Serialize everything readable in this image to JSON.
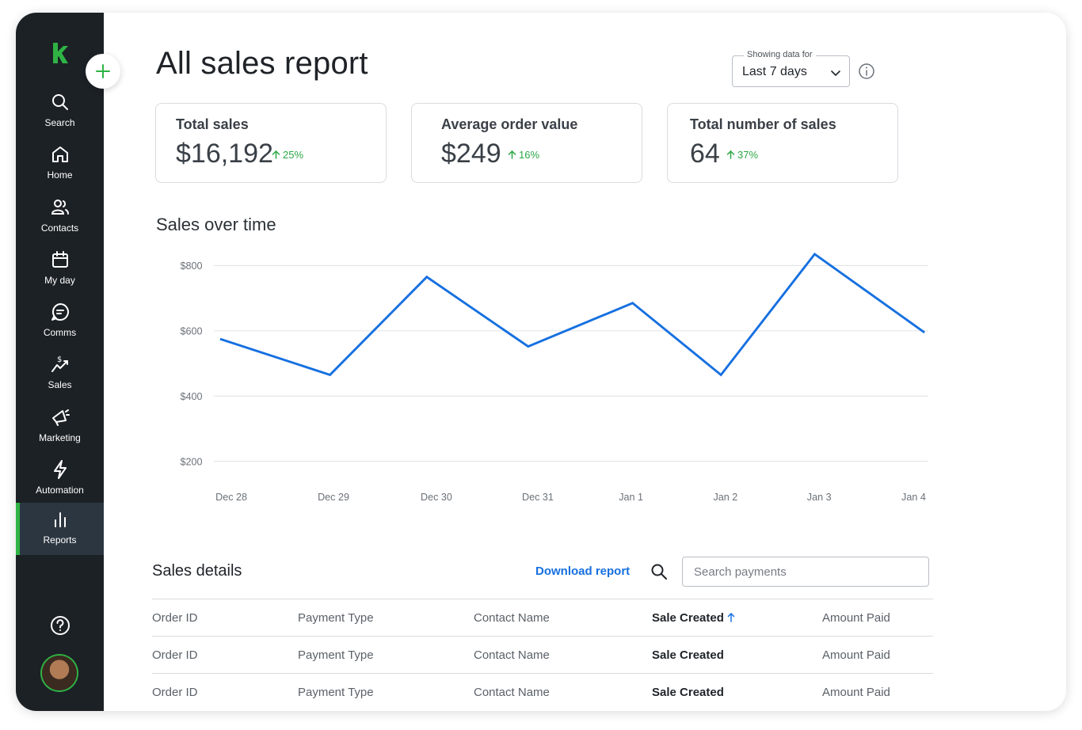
{
  "colors": {
    "accent": "#2fb344",
    "link": "#1670e0",
    "sidebar": "#1c2126",
    "line": "#1670e0",
    "trend_up": "#2aa845"
  },
  "sidebar": {
    "logo_icon": "keap-k-logo",
    "add_icon": "plus-icon",
    "items": [
      {
        "label": "Search",
        "icon": "search-icon"
      },
      {
        "label": "Home",
        "icon": "home-icon"
      },
      {
        "label": "Contacts",
        "icon": "contacts-icon"
      },
      {
        "label": "My day",
        "icon": "calendar-icon"
      },
      {
        "label": "Comms",
        "icon": "chat-icon"
      },
      {
        "label": "Sales",
        "icon": "sales-icon"
      },
      {
        "label": "Marketing",
        "icon": "megaphone-icon"
      },
      {
        "label": "Automation",
        "icon": "lightning-icon"
      },
      {
        "label": "Reports",
        "icon": "bar-chart-icon",
        "active": true
      }
    ],
    "help_icon": "help-icon",
    "avatar": "user-avatar"
  },
  "header": {
    "title": "All sales report",
    "range_legend": "Showing data for",
    "range_value": "Last 7 days"
  },
  "cards": [
    {
      "label": "Total sales",
      "value": "$16,192",
      "trend": "25%"
    },
    {
      "label": "Average order value",
      "value": "$249",
      "trend": "16%"
    },
    {
      "label": "Total number of sales",
      "value": "64",
      "trend": "37%"
    }
  ],
  "chart_section": {
    "title": "Sales over time"
  },
  "chart_data": {
    "type": "line",
    "title": "Sales over time",
    "categories": [
      "Dec 28",
      "Dec 29",
      "Dec 30",
      "Dec 31",
      "Jan 1",
      "Jan 2",
      "Jan 3",
      "Jan 4"
    ],
    "y_ticks": [
      "$800",
      "$600",
      "$400",
      "$200"
    ],
    "ylim": [
      200,
      800
    ],
    "x": [
      "Dec 28",
      "Dec 28.9",
      "Dec 30",
      "Dec 31",
      "Jan 1",
      "Jan 2",
      "Jan 3",
      "Jan 4"
    ],
    "series": [
      {
        "values": [
          575,
          465,
          765,
          552,
          685,
          465,
          835,
          595
        ]
      }
    ],
    "grid": true,
    "legend": "none"
  },
  "details": {
    "title": "Sales details",
    "download_label": "Download report",
    "search_placeholder": "Search payments",
    "columns": [
      "Order ID",
      "Payment Type",
      "Contact Name",
      "Sale Created",
      "Amount Paid"
    ],
    "rows": [
      [
        "Order ID",
        "Payment Type",
        "Contact Name",
        "Sale Created",
        "Amount Paid"
      ],
      [
        "Order ID",
        "Payment Type",
        "Contact Name",
        "Sale Created",
        "Amount Paid"
      ]
    ]
  }
}
